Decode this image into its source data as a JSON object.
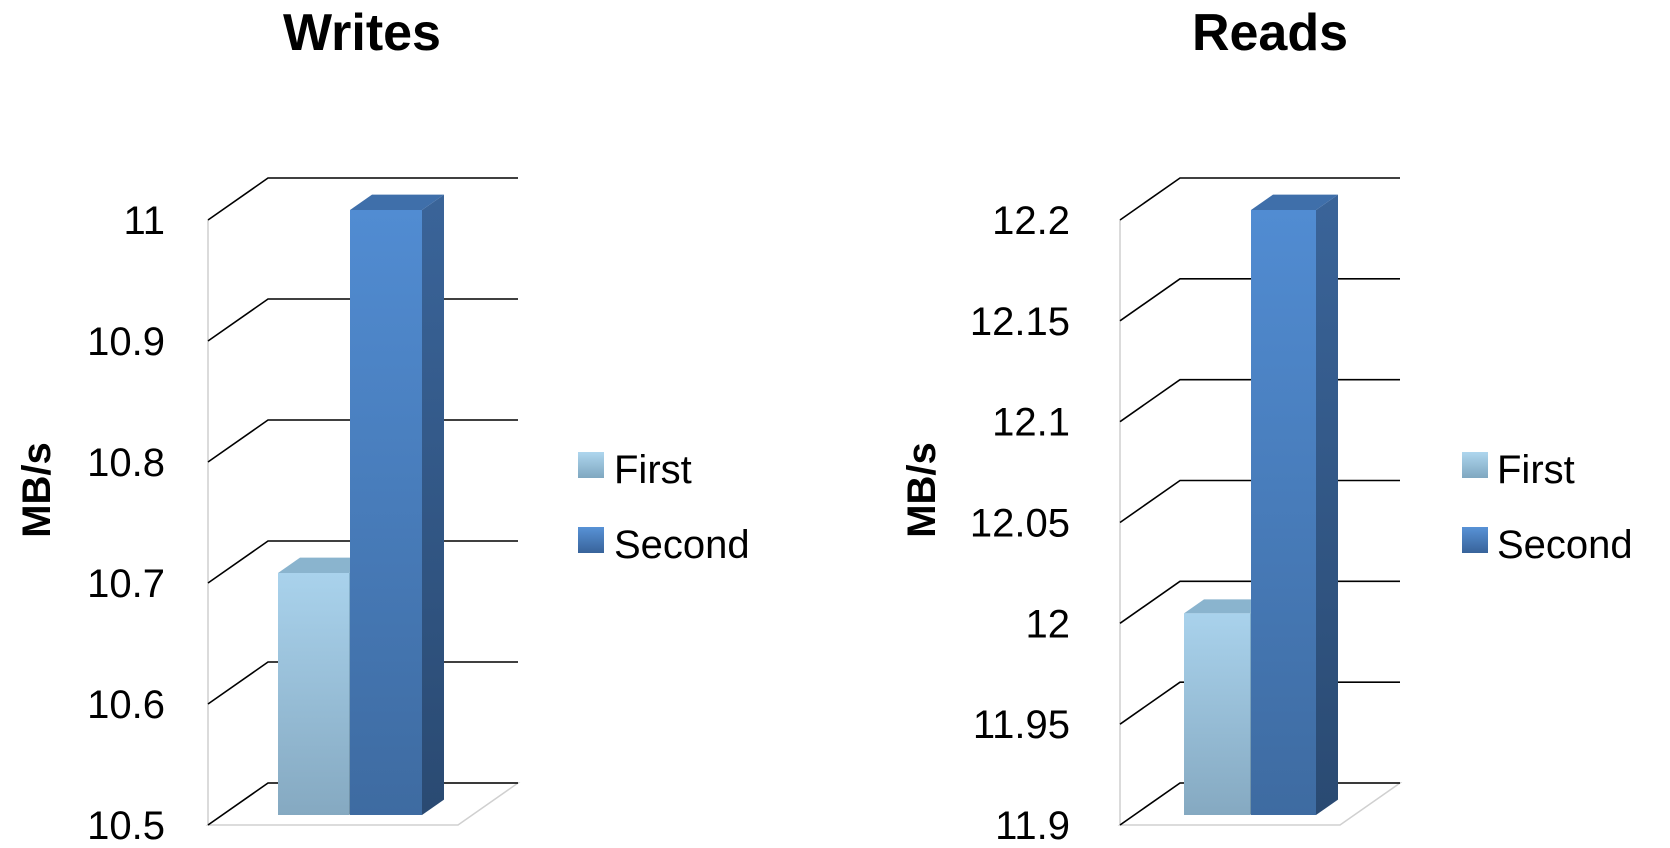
{
  "chart_data": [
    {
      "type": "bar",
      "title": "Writes",
      "ylabel": "MB/s",
      "xlabel": "",
      "ylim": [
        10.5,
        11
      ],
      "yticks": [
        "10.5",
        "10.6",
        "10.7",
        "10.8",
        "10.9",
        "11"
      ],
      "three_d": true,
      "legend_position": "right",
      "series": [
        {
          "name": "First",
          "value": 10.7,
          "color": "#9CC5E0"
        },
        {
          "name": "Second",
          "value": 11.0,
          "color": "#4A7FC1"
        }
      ]
    },
    {
      "type": "bar",
      "title": "Reads",
      "ylabel": "MB/s",
      "xlabel": "",
      "ylim": [
        11.9,
        12.2
      ],
      "yticks": [
        "11.9",
        "11.95",
        "12",
        "12.05",
        "12.1",
        "12.15",
        "12.2"
      ],
      "three_d": true,
      "legend_position": "right",
      "series": [
        {
          "name": "First",
          "value": 12.0,
          "color": "#9CC5E0"
        },
        {
          "name": "Second",
          "value": 12.2,
          "color": "#4A7FC1"
        }
      ]
    }
  ]
}
